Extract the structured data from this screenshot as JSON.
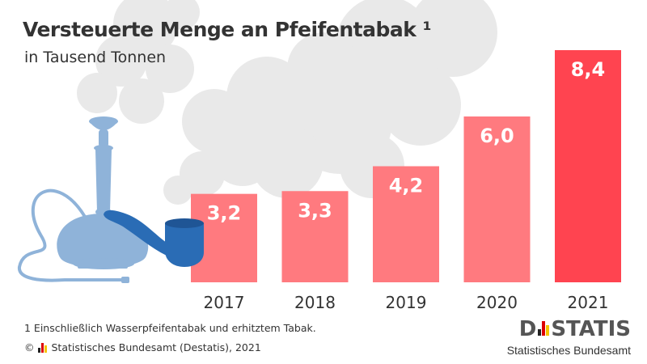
{
  "header": {
    "title": "Versteuerte Menge an Pfeifentabak ¹",
    "subtitle": "in Tausend Tonnen"
  },
  "footer": {
    "footnote": "1  Einschließlich Wasserpfeifentabak und erhitztem Tabak.",
    "source_symbol": "©",
    "source": "Statistisches Bundesamt (Destatis), 2021"
  },
  "logo": {
    "word_left": "D",
    "word_right": "STATIS",
    "subline": "Statistisches Bundesamt"
  },
  "colors": {
    "bar": "#ff7a7f",
    "bar_highlight": "#ff4450",
    "smoke": "#e9e9e9",
    "hookah": "#8fb3d9",
    "pipe": "#2a6cb5",
    "text": "#333333",
    "value_label": "#ffffff"
  },
  "chart_data": {
    "type": "bar",
    "title": "Versteuerte Menge an Pfeifentabak ¹",
    "subtitle": "in Tausend Tonnen",
    "categories": [
      "2017",
      "2018",
      "2019",
      "2020",
      "2021"
    ],
    "values": [
      3.2,
      3.3,
      4.2,
      6.0,
      8.4
    ],
    "value_labels": [
      "3,2",
      "3,3",
      "4,2",
      "6,0",
      "8,4"
    ],
    "highlight_index": 4,
    "ylim": [
      0,
      8.4
    ],
    "grid": false,
    "legend": "none"
  }
}
